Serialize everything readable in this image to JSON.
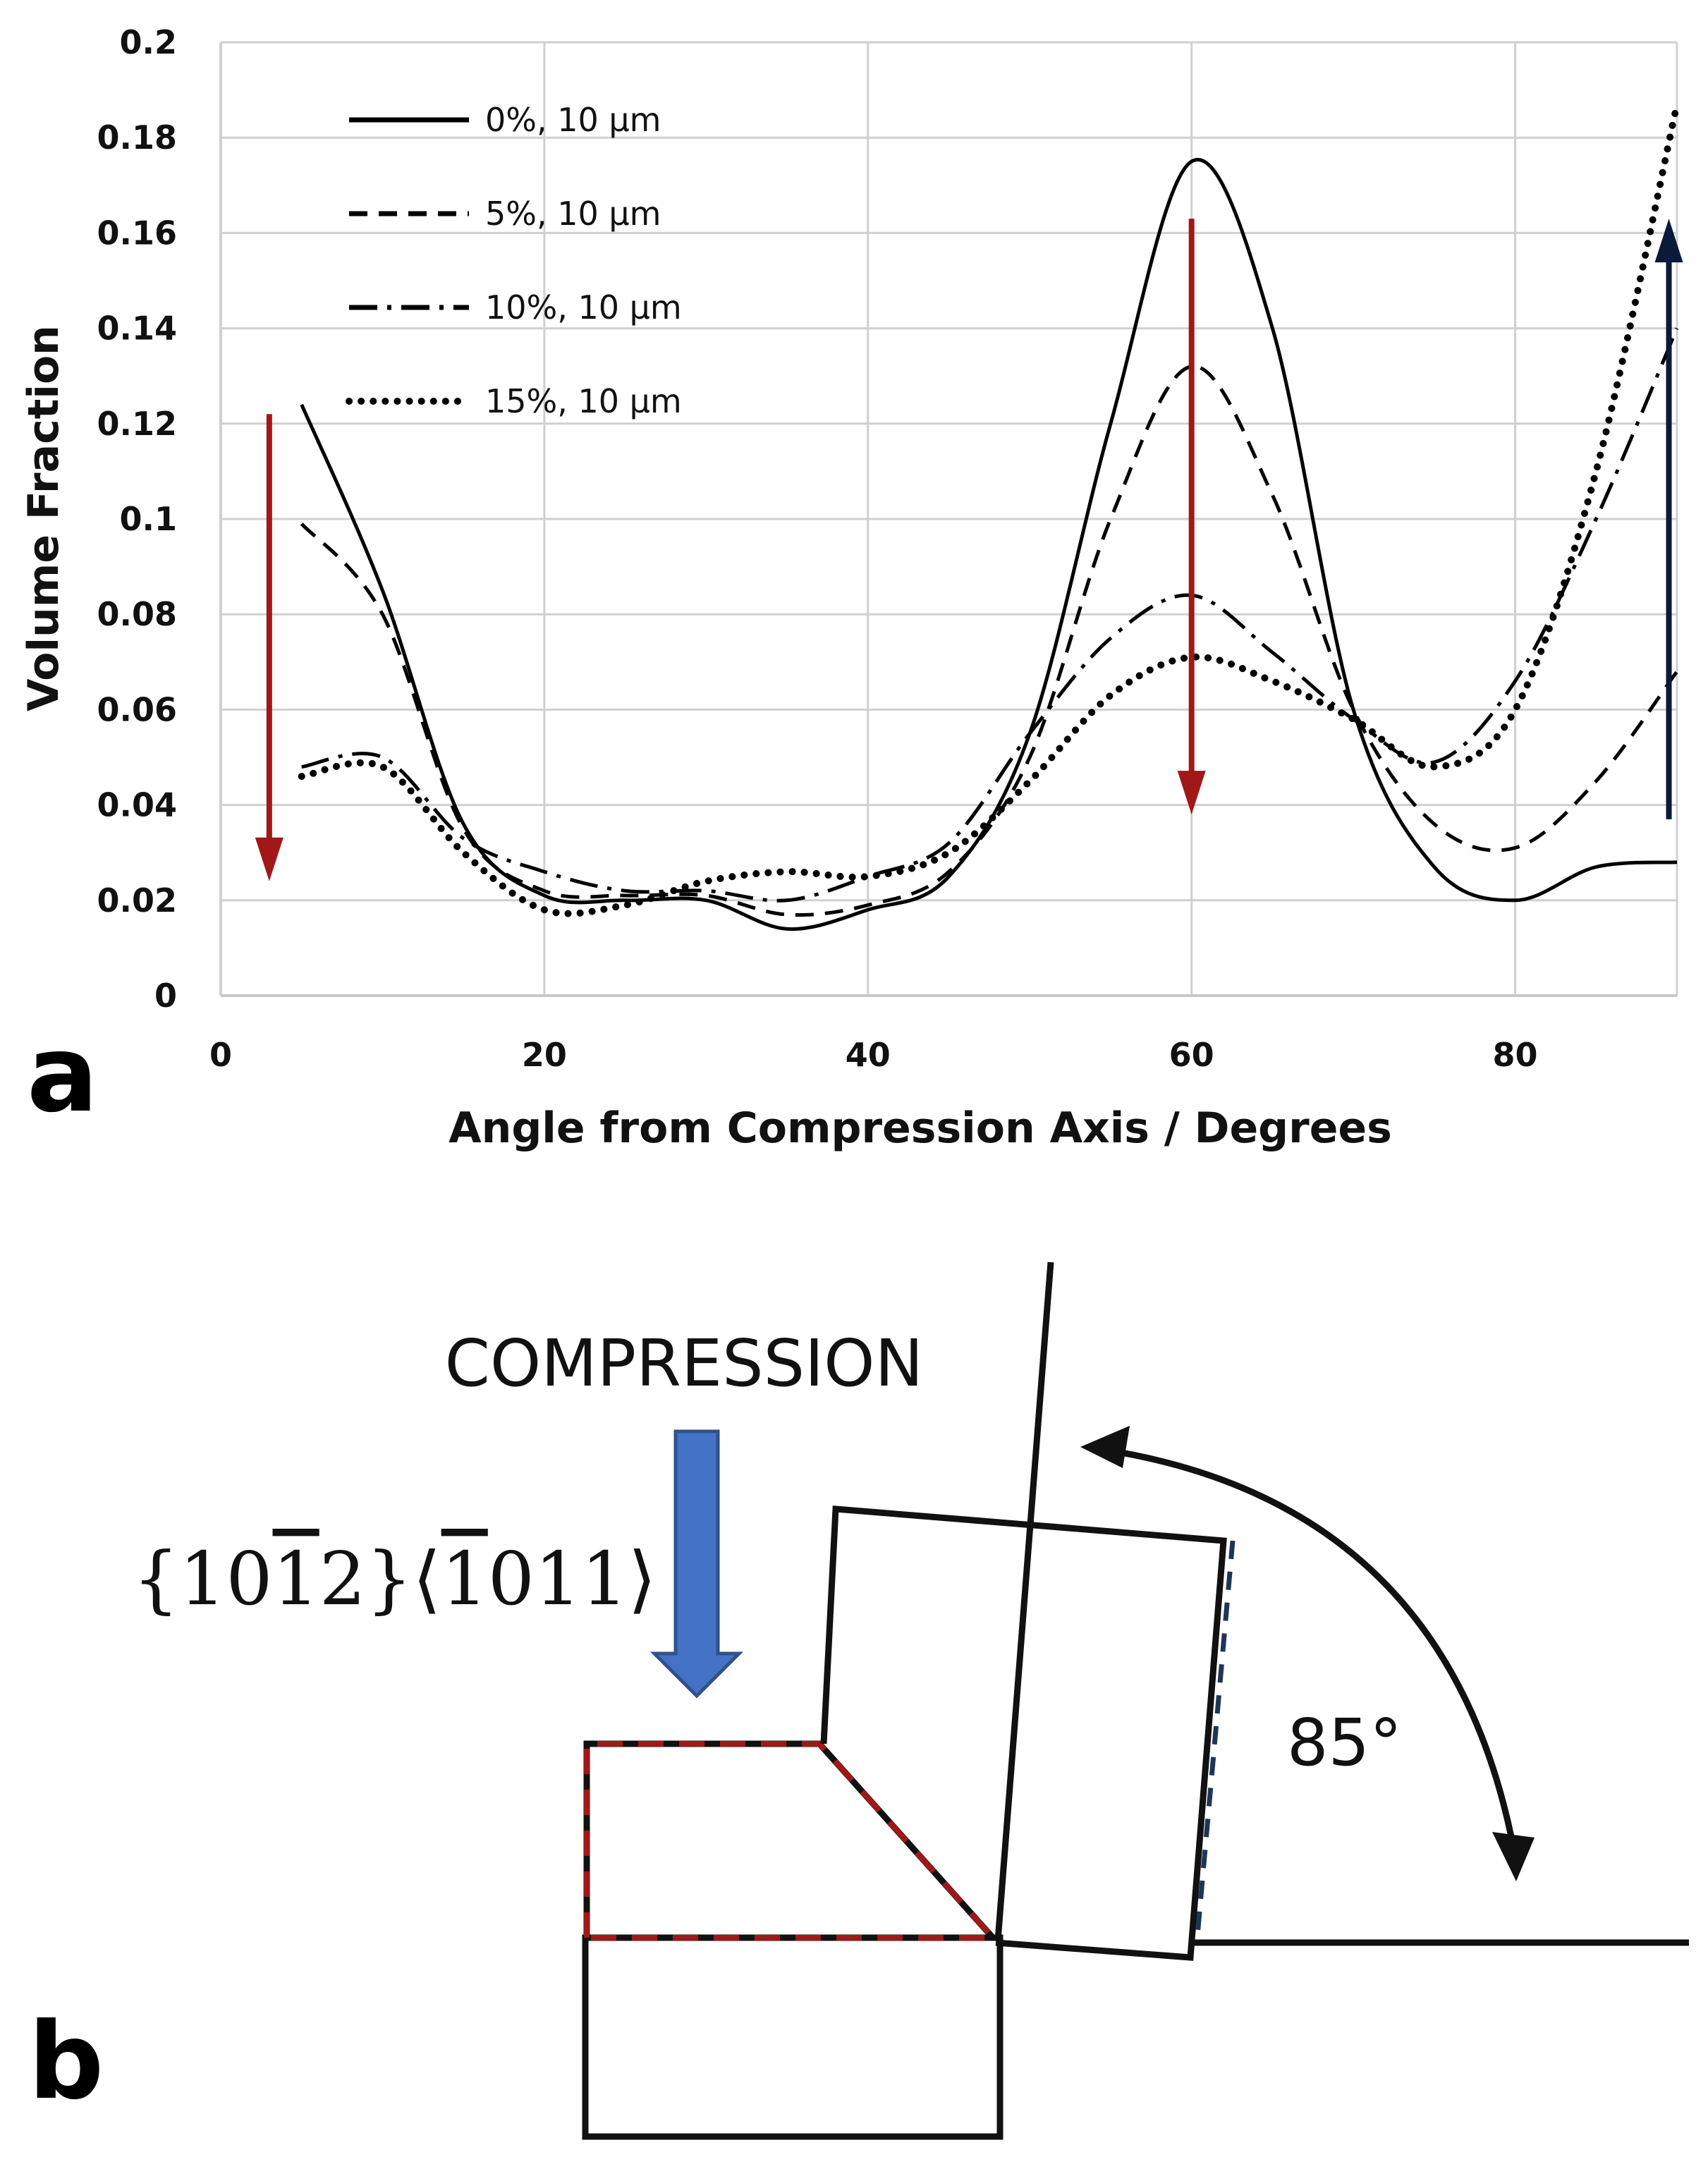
{
  "panel_labels": {
    "a": "a",
    "b": "b"
  },
  "chart_data": {
    "type": "line",
    "title": "",
    "xlabel": "Angle from Compression Axis / Degrees",
    "ylabel": "Volume Fraction",
    "xlim": [
      0,
      90
    ],
    "ylim": [
      0,
      0.2
    ],
    "xticks": [
      0,
      20,
      40,
      60,
      80
    ],
    "yticks": [
      0,
      0.02,
      0.04,
      0.06,
      0.08,
      0.1,
      0.12,
      0.14,
      0.16,
      0.18,
      0.2
    ],
    "ytick_labels": [
      "0",
      "0.02",
      "0.04",
      "0.06",
      "0.08",
      "0.1",
      "0.12",
      "0.14",
      "0.16",
      "0.18",
      "0.2"
    ],
    "legend_position": "top-left",
    "series": [
      {
        "name": "0%, 10 µm",
        "style": "solid",
        "x": [
          5,
          10,
          15,
          20,
          25,
          30,
          35,
          40,
          45,
          50,
          55,
          60,
          65,
          70,
          75,
          80,
          85,
          90
        ],
        "y": [
          0.124,
          0.085,
          0.036,
          0.021,
          0.02,
          0.02,
          0.014,
          0.018,
          0.025,
          0.055,
          0.12,
          0.175,
          0.14,
          0.06,
          0.027,
          0.02,
          0.027,
          0.028
        ]
      },
      {
        "name": "5%, 10 µm",
        "style": "dashed",
        "x": [
          5,
          10,
          15,
          20,
          25,
          30,
          35,
          40,
          45,
          50,
          55,
          60,
          65,
          70,
          75,
          80,
          85,
          90
        ],
        "y": [
          0.099,
          0.08,
          0.035,
          0.022,
          0.021,
          0.021,
          0.017,
          0.019,
          0.026,
          0.05,
          0.1,
          0.132,
          0.105,
          0.06,
          0.036,
          0.031,
          0.045,
          0.068
        ]
      },
      {
        "name": "10%, 10 µm",
        "style": "dashdot",
        "x": [
          5,
          10,
          15,
          20,
          25,
          30,
          35,
          40,
          45,
          50,
          55,
          60,
          65,
          70,
          75,
          80,
          85,
          90
        ],
        "y": [
          0.048,
          0.05,
          0.033,
          0.026,
          0.022,
          0.022,
          0.02,
          0.025,
          0.032,
          0.055,
          0.075,
          0.084,
          0.072,
          0.058,
          0.049,
          0.066,
          0.1,
          0.14
        ]
      },
      {
        "name": "15%, 10 µm",
        "style": "dotted",
        "x": [
          5,
          10,
          15,
          20,
          25,
          30,
          35,
          40,
          45,
          50,
          55,
          60,
          65,
          70,
          75,
          80,
          85,
          90
        ],
        "y": [
          0.046,
          0.048,
          0.03,
          0.018,
          0.019,
          0.024,
          0.026,
          0.025,
          0.03,
          0.045,
          0.063,
          0.071,
          0.066,
          0.058,
          0.048,
          0.06,
          0.11,
          0.187
        ]
      }
    ],
    "annotations": [
      {
        "kind": "arrow",
        "color": "#a01818",
        "x": 3,
        "from_y": 0.122,
        "to_y": 0.024,
        "direction": "down"
      },
      {
        "kind": "arrow",
        "color": "#a01818",
        "x": 60,
        "from_y": 0.163,
        "to_y": 0.038,
        "direction": "down"
      },
      {
        "kind": "arrow",
        "color": "#0a1a3a",
        "x": 89.5,
        "from_y": 0.037,
        "to_y": 0.163,
        "direction": "up"
      }
    ]
  },
  "diagram": {
    "compression_label": "COMPRESSION",
    "twin_system_label": "{1012}⟨1011⟩",
    "angle_label": "85°",
    "arrow_color": "#4472c4",
    "dashed_color": "#a01818"
  }
}
